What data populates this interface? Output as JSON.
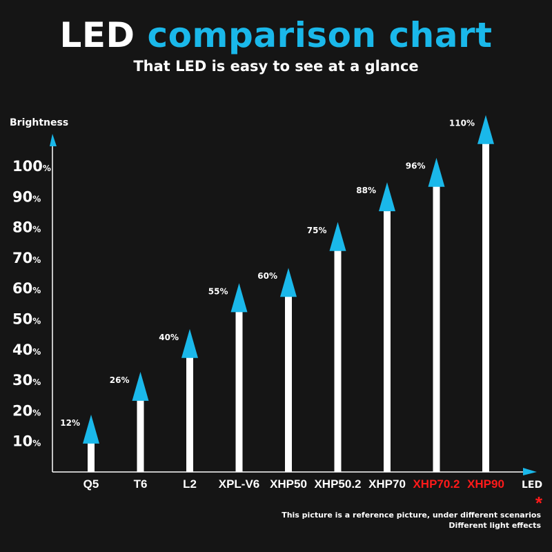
{
  "header": {
    "title_part1": "LED",
    "title_part2": "comparison chart",
    "subtitle": "That LED is easy to see at a glance"
  },
  "colors": {
    "background": "#151515",
    "accent": "#1ab8ea",
    "bar": "#ffffff",
    "highlight": "#ff1a1a"
  },
  "chart_data": {
    "type": "bar",
    "ylabel": "Brightness",
    "xlabel": "LED",
    "ylim": [
      0,
      115
    ],
    "yticks": [
      {
        "value": 10,
        "label": "10",
        "suffix": "%"
      },
      {
        "value": 20,
        "label": "20",
        "suffix": "%"
      },
      {
        "value": 30,
        "label": "30",
        "suffix": "%"
      },
      {
        "value": 40,
        "label": "40",
        "suffix": "%"
      },
      {
        "value": 50,
        "label": "50",
        "suffix": "%"
      },
      {
        "value": 60,
        "label": "60",
        "suffix": "%"
      },
      {
        "value": 70,
        "label": "70",
        "suffix": "%"
      },
      {
        "value": 80,
        "label": "80",
        "suffix": "%"
      },
      {
        "value": 90,
        "label": "90",
        "suffix": "%"
      },
      {
        "value": 100,
        "label": "100",
        "suffix": "%"
      }
    ],
    "categories": [
      "Q5",
      "T6",
      "L2",
      "XPL-V6",
      "XHP50",
      "XHP50.2",
      "XHP70",
      "XHP70.2",
      "XHP90"
    ],
    "values": [
      12,
      26,
      40,
      55,
      60,
      75,
      88,
      96,
      110
    ],
    "value_labels": [
      "12%",
      "26%",
      "40%",
      "55%",
      "60%",
      "75%",
      "88%",
      "96%",
      "110%"
    ],
    "highlighted": [
      "XHP70.2",
      "XHP90"
    ]
  },
  "footer": {
    "asterisk": "*",
    "note_line1": "This picture is a reference picture, under different scenarios",
    "note_line2": "Different light effects"
  }
}
